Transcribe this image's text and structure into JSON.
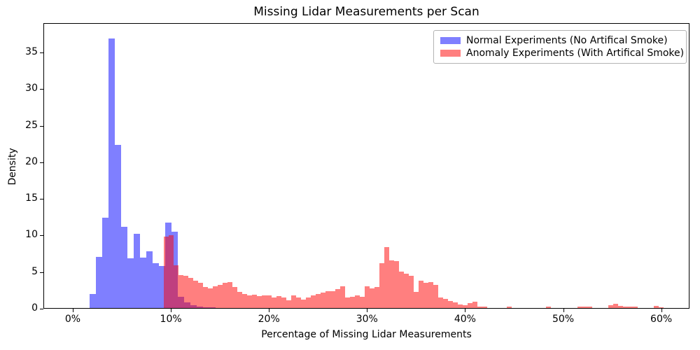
{
  "title": "Missing Lidar Measurements per Scan",
  "axes": {
    "xlabel": "Percentage of Missing Lidar Measurements",
    "ylabel": "Density",
    "x_ticks": [
      {
        "value": 0,
        "label": "0%"
      },
      {
        "value": 10,
        "label": "10%"
      },
      {
        "value": 20,
        "label": "20%"
      },
      {
        "value": 30,
        "label": "30%"
      },
      {
        "value": 40,
        "label": "40%"
      },
      {
        "value": 50,
        "label": "50%"
      },
      {
        "value": 60,
        "label": "60%"
      }
    ],
    "y_ticks": [
      {
        "value": 0,
        "label": "0"
      },
      {
        "value": 5,
        "label": "5"
      },
      {
        "value": 10,
        "label": "10"
      },
      {
        "value": 15,
        "label": "15"
      },
      {
        "value": 20,
        "label": "20"
      },
      {
        "value": 25,
        "label": "25"
      },
      {
        "value": 30,
        "label": "30"
      },
      {
        "value": 35,
        "label": "35"
      }
    ]
  },
  "legend": {
    "items": [
      {
        "label": "Normal Experiments (No Artifical Smoke)",
        "color": "rgba(0,0,255,0.5)"
      },
      {
        "label": "Anomaly Experiments (With Artifical Smoke)",
        "color": "rgba(255,0,0,0.5)"
      }
    ]
  },
  "chart_data": {
    "type": "bar",
    "subtype": "overlaid-histograms",
    "title": "Missing Lidar Measurements per Scan",
    "xlabel": "Percentage of Missing Lidar Measurements",
    "ylabel": "Density",
    "xlim_pct": [
      -3,
      63
    ],
    "ylim": [
      0,
      39
    ],
    "grid": false,
    "legend_position": "upper-right",
    "colors": {
      "normal": "rgba(0,0,255,0.5)",
      "anomaly": "rgba(255,0,0,0.5)",
      "overlap_rendered": "#bf3f7f"
    },
    "series": [
      {
        "name": "Normal Experiments (No Artifical Smoke)",
        "color": "rgba(0,0,255,0.5)",
        "bin_width_pct": 0.643,
        "bins": [
          {
            "x": 1.66,
            "h": 1.9
          },
          {
            "x": 2.3,
            "h": 7.0
          },
          {
            "x": 2.95,
            "h": 12.3
          },
          {
            "x": 3.59,
            "h": 36.8
          },
          {
            "x": 4.23,
            "h": 22.3
          },
          {
            "x": 4.87,
            "h": 11.1
          },
          {
            "x": 5.52,
            "h": 6.8
          },
          {
            "x": 6.16,
            "h": 10.1
          },
          {
            "x": 6.8,
            "h": 6.9
          },
          {
            "x": 7.44,
            "h": 7.7
          },
          {
            "x": 8.09,
            "h": 6.1
          },
          {
            "x": 8.73,
            "h": 5.7
          },
          {
            "x": 9.37,
            "h": 11.7
          },
          {
            "x": 10.01,
            "h": 10.4
          },
          {
            "x": 10.66,
            "h": 1.5
          },
          {
            "x": 11.3,
            "h": 0.75
          },
          {
            "x": 11.94,
            "h": 0.35
          },
          {
            "x": 12.58,
            "h": 0.15
          },
          {
            "x": 13.23,
            "h": 0.1
          },
          {
            "x": 13.87,
            "h": 0.05
          }
        ]
      },
      {
        "name": "Anomaly Experiments (With Artifical Smoke)",
        "color": "rgba(255,0,0,0.5)",
        "bin_width_pct": 0.5,
        "bins": [
          {
            "x": 9.2,
            "h": 9.8
          },
          {
            "x": 9.7,
            "h": 9.9
          },
          {
            "x": 10.2,
            "h": 5.8
          },
          {
            "x": 10.7,
            "h": 4.5
          },
          {
            "x": 11.2,
            "h": 4.4
          },
          {
            "x": 11.7,
            "h": 4.1
          },
          {
            "x": 12.2,
            "h": 3.7
          },
          {
            "x": 12.7,
            "h": 3.4
          },
          {
            "x": 13.2,
            "h": 2.9
          },
          {
            "x": 13.7,
            "h": 2.7
          },
          {
            "x": 14.2,
            "h": 3.0
          },
          {
            "x": 14.7,
            "h": 3.2
          },
          {
            "x": 15.2,
            "h": 3.4
          },
          {
            "x": 15.7,
            "h": 3.5
          },
          {
            "x": 16.2,
            "h": 2.9
          },
          {
            "x": 16.7,
            "h": 2.2
          },
          {
            "x": 17.2,
            "h": 1.9
          },
          {
            "x": 17.7,
            "h": 1.7
          },
          {
            "x": 18.2,
            "h": 1.8
          },
          {
            "x": 18.7,
            "h": 1.6
          },
          {
            "x": 19.2,
            "h": 1.7
          },
          {
            "x": 19.7,
            "h": 1.75
          },
          {
            "x": 20.2,
            "h": 1.4
          },
          {
            "x": 20.7,
            "h": 1.6
          },
          {
            "x": 21.2,
            "h": 1.4
          },
          {
            "x": 21.7,
            "h": 1.05
          },
          {
            "x": 22.2,
            "h": 1.75
          },
          {
            "x": 22.7,
            "h": 1.4
          },
          {
            "x": 23.2,
            "h": 1.15
          },
          {
            "x": 23.7,
            "h": 1.4
          },
          {
            "x": 24.2,
            "h": 1.75
          },
          {
            "x": 24.7,
            "h": 1.95
          },
          {
            "x": 25.2,
            "h": 2.1
          },
          {
            "x": 25.7,
            "h": 2.3
          },
          {
            "x": 26.2,
            "h": 2.3
          },
          {
            "x": 26.7,
            "h": 2.55
          },
          {
            "x": 27.2,
            "h": 3.0
          },
          {
            "x": 27.7,
            "h": 1.4
          },
          {
            "x": 28.2,
            "h": 1.5
          },
          {
            "x": 28.7,
            "h": 1.75
          },
          {
            "x": 29.2,
            "h": 1.5
          },
          {
            "x": 29.7,
            "h": 3.0
          },
          {
            "x": 30.2,
            "h": 2.7
          },
          {
            "x": 30.7,
            "h": 2.9
          },
          {
            "x": 31.2,
            "h": 6.1
          },
          {
            "x": 31.7,
            "h": 8.3
          },
          {
            "x": 32.2,
            "h": 6.5
          },
          {
            "x": 32.7,
            "h": 6.4
          },
          {
            "x": 33.2,
            "h": 4.95
          },
          {
            "x": 33.7,
            "h": 4.7
          },
          {
            "x": 34.2,
            "h": 4.4
          },
          {
            "x": 34.7,
            "h": 2.2
          },
          {
            "x": 35.2,
            "h": 3.7
          },
          {
            "x": 35.7,
            "h": 3.4
          },
          {
            "x": 36.2,
            "h": 3.5
          },
          {
            "x": 36.7,
            "h": 3.2
          },
          {
            "x": 37.2,
            "h": 1.4
          },
          {
            "x": 37.7,
            "h": 1.2
          },
          {
            "x": 38.2,
            "h": 0.95
          },
          {
            "x": 38.7,
            "h": 0.75
          },
          {
            "x": 39.2,
            "h": 0.5
          },
          {
            "x": 39.7,
            "h": 0.4
          },
          {
            "x": 40.2,
            "h": 0.7
          },
          {
            "x": 40.7,
            "h": 0.85
          },
          {
            "x": 41.2,
            "h": 0.15
          },
          {
            "x": 41.7,
            "h": 0.2
          },
          {
            "x": 44.2,
            "h": 0.15
          },
          {
            "x": 48.2,
            "h": 0.15
          },
          {
            "x": 51.4,
            "h": 0.2
          },
          {
            "x": 51.9,
            "h": 0.2
          },
          {
            "x": 52.4,
            "h": 0.2
          },
          {
            "x": 54.5,
            "h": 0.4
          },
          {
            "x": 55.0,
            "h": 0.55
          },
          {
            "x": 55.5,
            "h": 0.3
          },
          {
            "x": 56.0,
            "h": 0.15
          },
          {
            "x": 56.5,
            "h": 0.2
          },
          {
            "x": 57.0,
            "h": 0.15
          },
          {
            "x": 59.2,
            "h": 0.3
          },
          {
            "x": 59.7,
            "h": 0.1
          }
        ]
      }
    ]
  }
}
